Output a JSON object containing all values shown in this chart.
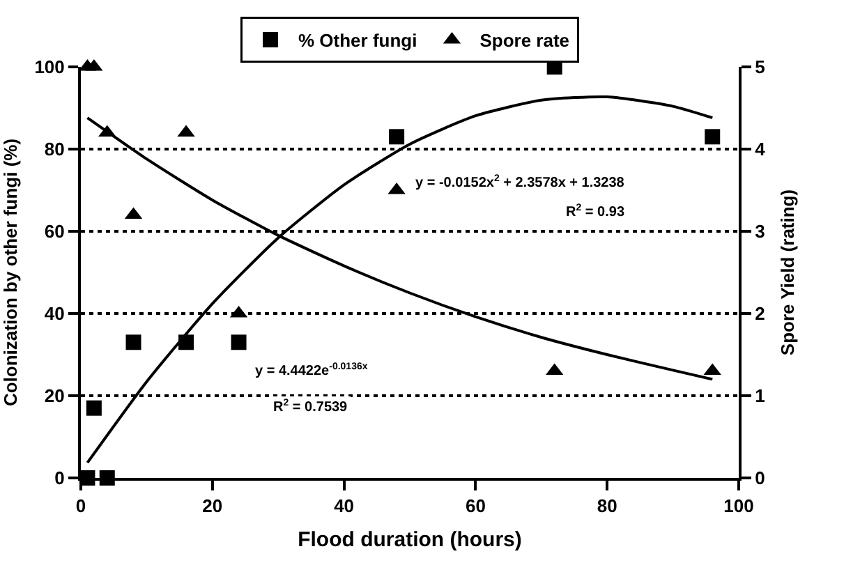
{
  "chart_data": {
    "type": "scatter",
    "xlabel": "Flood duration (hours)",
    "ylabel": "Colonization by other fungi (%)",
    "y2label": "Spore Yield (rating)",
    "xlim": [
      0,
      100
    ],
    "xticks": [
      0,
      20,
      40,
      60,
      80,
      100
    ],
    "ylim": [
      0,
      100
    ],
    "yticks": [
      0,
      20,
      40,
      60,
      80,
      100
    ],
    "y2lim": [
      0,
      5
    ],
    "y2ticks": [
      0,
      1,
      2,
      3,
      4,
      5
    ],
    "grid": "y",
    "legend": "top",
    "series": [
      {
        "name": "% Other fungi",
        "marker": "square",
        "color": "#000000",
        "x": [
          1,
          2,
          4,
          8,
          16,
          24,
          48,
          72,
          96
        ],
        "values": [
          0,
          17,
          0,
          33,
          33,
          33,
          83,
          100,
          83
        ]
      },
      {
        "name": "Spore rate",
        "marker": "triangle",
        "color": "#000000",
        "axis": "y2",
        "x": [
          1,
          2,
          4,
          8,
          16,
          24,
          48,
          72,
          96
        ],
        "values": [
          5,
          5,
          4.2,
          3.2,
          4.2,
          2,
          3.5,
          1.3,
          1.3
        ]
      },
      {
        "type": "line",
        "marker": "none",
        "line_style": "solid",
        "color": "#000000",
        "x": [
          1,
          10,
          20,
          30,
          40,
          50,
          60,
          70,
          80,
          90,
          96
        ],
        "values": [
          3.7,
          23.4,
          42.4,
          58.4,
          71.3,
          81.2,
          88.1,
          91.9,
          92.7,
          90.4,
          87.6
        ]
      },
      {
        "type": "line",
        "marker": "none",
        "line_style": "solid",
        "color": "#000000",
        "axis": "y2",
        "x": [
          1,
          10,
          20,
          30,
          40,
          50,
          60,
          70,
          80,
          90,
          96
        ],
        "values": [
          4.38,
          3.88,
          3.38,
          2.95,
          2.58,
          2.25,
          1.96,
          1.71,
          1.5,
          1.31,
          1.2
        ]
      }
    ],
    "annotations": [
      "y = -0.0152x$^{2}$ + 2.3578x + 1.3238",
      "R$^{2}$ = 0.93",
      "y = 4.4422e$^{-0.0136x}$",
      "R$^{2}$ = 0.7539"
    ]
  }
}
